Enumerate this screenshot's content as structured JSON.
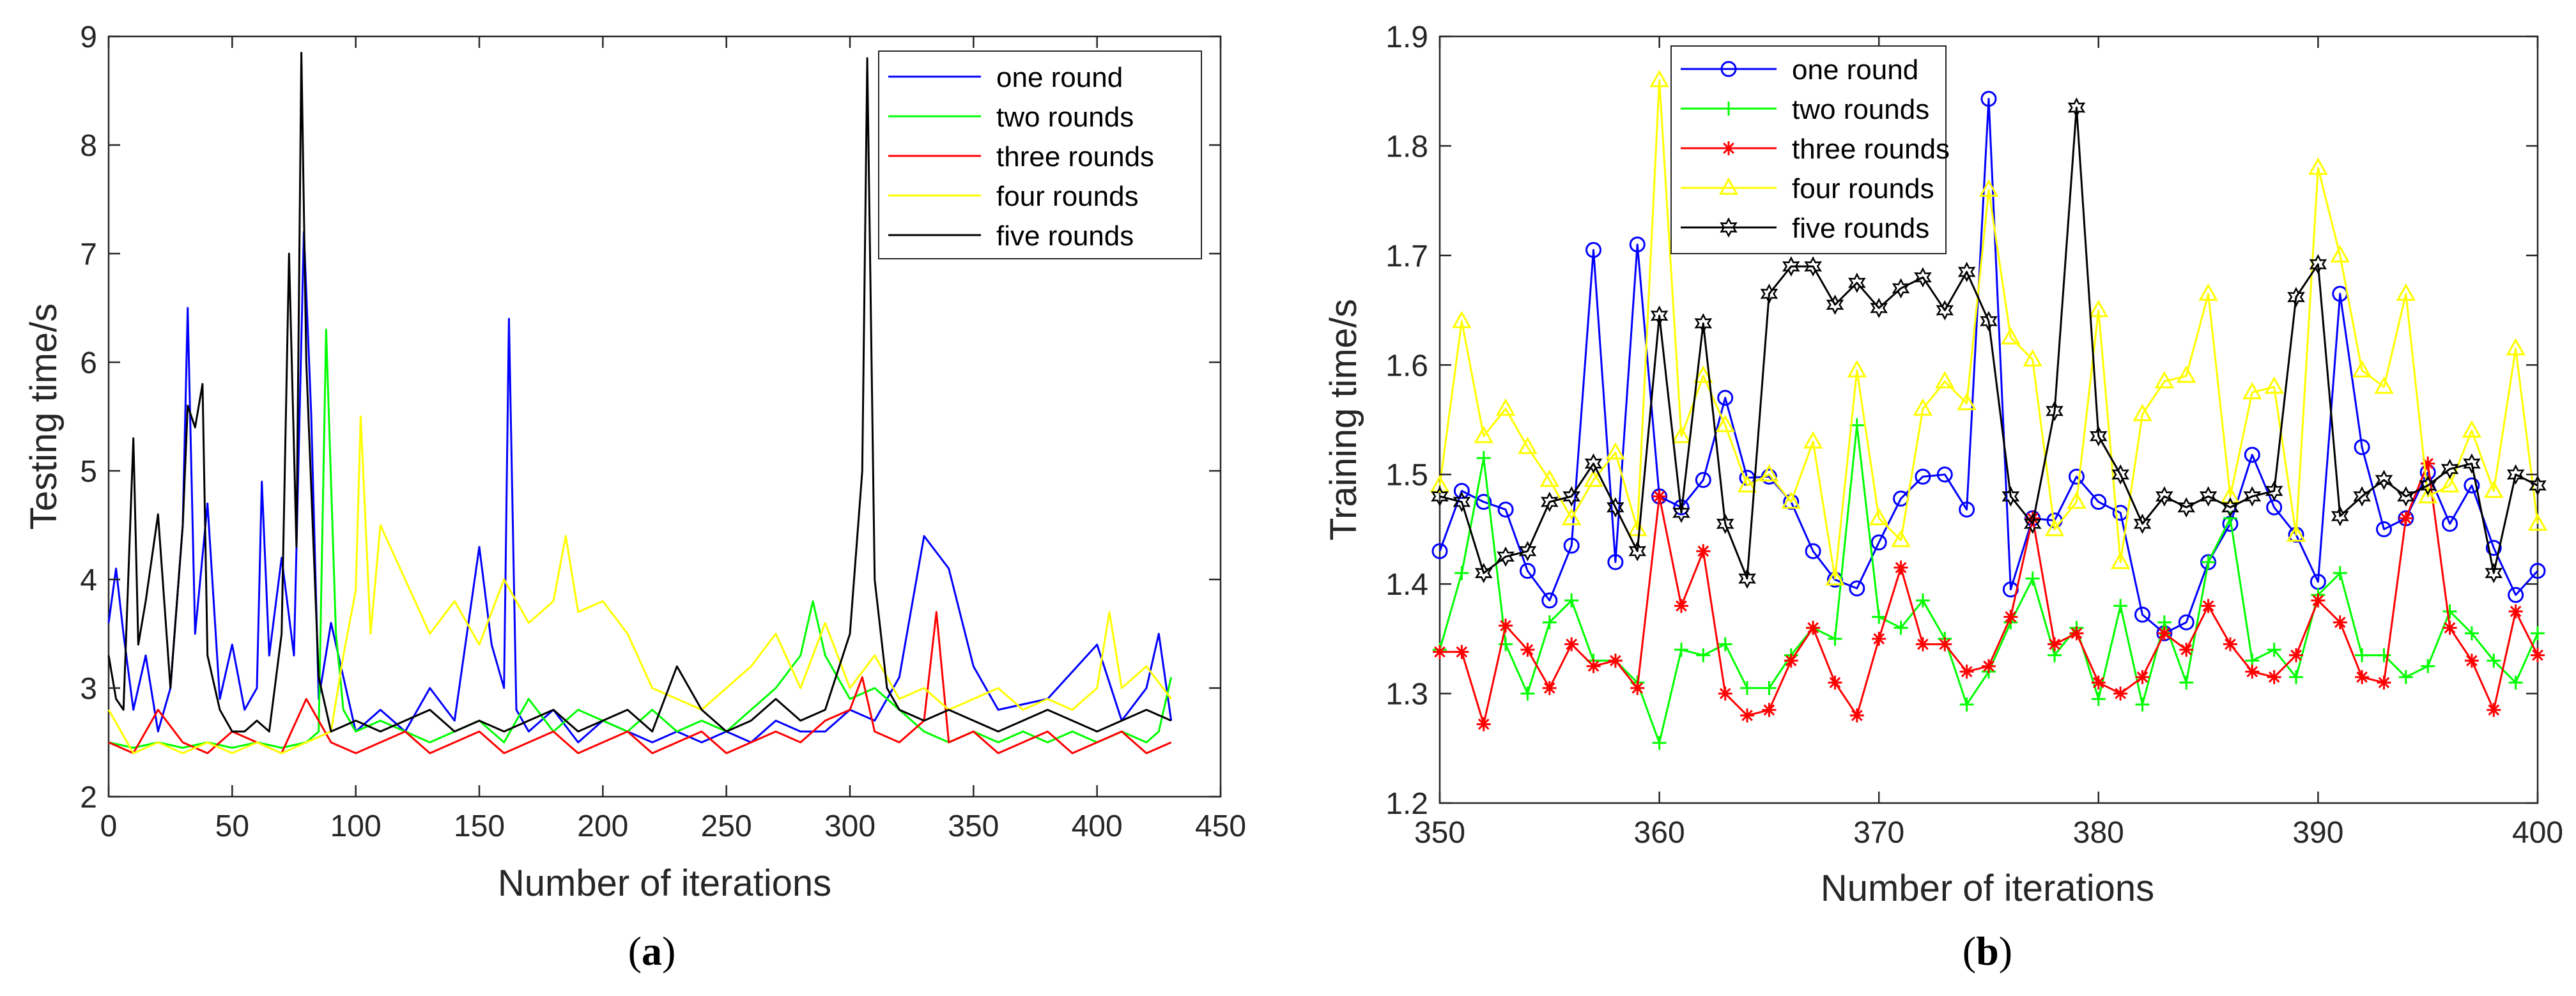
{
  "chart_data": [
    {
      "type": "line",
      "panel_label": "a",
      "title": "",
      "xlabel": "Number of iterations",
      "ylabel": "Testing time/s",
      "xlim": [
        0,
        450
      ],
      "ylim": [
        2,
        9
      ],
      "xticks": [
        0,
        50,
        100,
        150,
        200,
        250,
        300,
        350,
        400,
        450
      ],
      "yticks": [
        2,
        3,
        4,
        5,
        6,
        7,
        8,
        9
      ],
      "legend_position": "top-right",
      "colors": {
        "one round": "#0000ff",
        "two rounds": "#00ff00",
        "three rounds": "#ff0000",
        "four rounds": "#ffff00",
        "five rounds": "#000000"
      },
      "series": [
        {
          "name": "one round",
          "color": "#0000ff",
          "x": [
            0,
            3,
            6,
            10,
            15,
            20,
            25,
            30,
            32,
            35,
            40,
            45,
            50,
            55,
            60,
            62,
            65,
            70,
            75,
            79,
            82,
            85,
            90,
            100,
            110,
            120,
            130,
            140,
            150,
            155,
            160,
            162,
            165,
            170,
            180,
            190,
            200,
            210,
            220,
            230,
            240,
            250,
            260,
            270,
            280,
            290,
            300,
            310,
            320,
            330,
            340,
            350,
            360,
            380,
            400,
            410,
            420,
            425,
            430
          ],
          "y": [
            3.6,
            4.1,
            3.5,
            2.8,
            3.3,
            2.6,
            3.0,
            4.5,
            6.5,
            3.5,
            4.7,
            2.9,
            3.4,
            2.8,
            3.0,
            4.9,
            3.3,
            4.2,
            3.3,
            7.2,
            5.5,
            2.9,
            3.6,
            2.6,
            2.8,
            2.6,
            3.0,
            2.7,
            4.3,
            3.4,
            3.0,
            6.4,
            2.8,
            2.6,
            2.8,
            2.5,
            2.7,
            2.6,
            2.5,
            2.6,
            2.5,
            2.6,
            2.5,
            2.7,
            2.6,
            2.6,
            2.8,
            2.7,
            3.1,
            4.4,
            4.1,
            3.2,
            2.8,
            2.9,
            3.4,
            2.7,
            3.0,
            3.5,
            2.7
          ]
        },
        {
          "name": "two rounds",
          "color": "#00ff00",
          "x": [
            0,
            10,
            20,
            30,
            40,
            50,
            60,
            70,
            80,
            85,
            88,
            92,
            95,
            100,
            110,
            120,
            130,
            140,
            150,
            160,
            170,
            180,
            190,
            200,
            210,
            220,
            230,
            240,
            250,
            260,
            270,
            280,
            285,
            290,
            300,
            310,
            320,
            330,
            340,
            350,
            360,
            370,
            380,
            390,
            400,
            410,
            420,
            425,
            430
          ],
          "y": [
            2.5,
            2.45,
            2.5,
            2.45,
            2.5,
            2.45,
            2.5,
            2.45,
            2.5,
            2.6,
            6.3,
            3.5,
            2.8,
            2.6,
            2.7,
            2.6,
            2.5,
            2.6,
            2.7,
            2.5,
            2.9,
            2.6,
            2.8,
            2.7,
            2.6,
            2.8,
            2.6,
            2.7,
            2.6,
            2.8,
            3.0,
            3.3,
            3.8,
            3.3,
            2.9,
            3.0,
            2.8,
            2.6,
            2.5,
            2.6,
            2.5,
            2.6,
            2.5,
            2.6,
            2.5,
            2.6,
            2.5,
            2.6,
            3.1
          ]
        },
        {
          "name": "three rounds",
          "color": "#ff0000",
          "x": [
            0,
            10,
            20,
            30,
            40,
            50,
            60,
            70,
            80,
            90,
            100,
            110,
            120,
            130,
            140,
            150,
            160,
            170,
            180,
            190,
            200,
            210,
            220,
            230,
            240,
            250,
            260,
            270,
            280,
            290,
            300,
            305,
            310,
            320,
            330,
            335,
            340,
            350,
            360,
            370,
            380,
            390,
            400,
            410,
            420,
            430
          ],
          "y": [
            2.5,
            2.4,
            2.8,
            2.5,
            2.4,
            2.6,
            2.5,
            2.4,
            2.9,
            2.5,
            2.4,
            2.5,
            2.6,
            2.4,
            2.5,
            2.6,
            2.4,
            2.5,
            2.6,
            2.4,
            2.5,
            2.6,
            2.4,
            2.5,
            2.6,
            2.4,
            2.5,
            2.6,
            2.5,
            2.7,
            2.8,
            3.1,
            2.6,
            2.5,
            2.7,
            3.7,
            2.5,
            2.6,
            2.4,
            2.5,
            2.6,
            2.4,
            2.5,
            2.6,
            2.4,
            2.5
          ]
        },
        {
          "name": "four rounds",
          "color": "#ffff00",
          "x": [
            0,
            10,
            20,
            30,
            40,
            50,
            60,
            70,
            80,
            90,
            95,
            100,
            102,
            106,
            110,
            120,
            130,
            140,
            150,
            160,
            170,
            180,
            185,
            190,
            200,
            210,
            220,
            230,
            240,
            250,
            260,
            270,
            280,
            290,
            300,
            310,
            320,
            330,
            340,
            350,
            360,
            370,
            380,
            390,
            400,
            405,
            410,
            420,
            430
          ],
          "y": [
            2.8,
            2.4,
            2.5,
            2.4,
            2.5,
            2.4,
            2.5,
            2.4,
            2.5,
            2.6,
            3.3,
            3.9,
            5.5,
            3.5,
            4.5,
            4.0,
            3.5,
            3.8,
            3.4,
            4.0,
            3.6,
            3.8,
            4.4,
            3.7,
            3.8,
            3.5,
            3.0,
            2.9,
            2.8,
            3.0,
            3.2,
            3.5,
            3.0,
            3.6,
            3.0,
            3.3,
            2.9,
            3.0,
            2.8,
            2.9,
            3.0,
            2.8,
            2.9,
            2.8,
            3.0,
            3.7,
            3.0,
            3.2,
            2.9
          ]
        },
        {
          "name": "five rounds",
          "color": "#000000",
          "x": [
            0,
            3,
            6,
            10,
            12,
            15,
            20,
            25,
            30,
            32,
            35,
            38,
            40,
            45,
            50,
            55,
            60,
            65,
            70,
            73,
            76,
            78,
            80,
            85,
            90,
            100,
            110,
            120,
            130,
            140,
            150,
            160,
            170,
            180,
            190,
            200,
            210,
            220,
            230,
            240,
            250,
            260,
            270,
            280,
            290,
            300,
            305,
            307,
            310,
            315,
            320,
            330,
            340,
            350,
            360,
            370,
            380,
            390,
            400,
            410,
            420,
            430
          ],
          "y": [
            3.3,
            2.9,
            2.8,
            5.3,
            3.4,
            3.8,
            4.6,
            3.0,
            4.5,
            5.6,
            5.4,
            5.8,
            3.3,
            2.8,
            2.6,
            2.6,
            2.7,
            2.6,
            3.5,
            7.0,
            4.3,
            8.85,
            6.0,
            3.1,
            2.6,
            2.7,
            2.6,
            2.7,
            2.8,
            2.6,
            2.7,
            2.6,
            2.7,
            2.8,
            2.6,
            2.7,
            2.8,
            2.6,
            3.2,
            2.8,
            2.6,
            2.7,
            2.9,
            2.7,
            2.8,
            3.5,
            5.0,
            8.8,
            4.0,
            3.0,
            2.8,
            2.7,
            2.8,
            2.7,
            2.6,
            2.7,
            2.8,
            2.7,
            2.6,
            2.7,
            2.8,
            2.7
          ]
        }
      ]
    },
    {
      "type": "line",
      "panel_label": "b",
      "title": "",
      "xlabel": "Number of iterations",
      "ylabel": "Training time/s",
      "xlim": [
        350,
        400
      ],
      "ylim": [
        1.2,
        1.9
      ],
      "xticks": [
        350,
        360,
        370,
        380,
        390,
        400
      ],
      "yticks": [
        1.2,
        1.3,
        1.4,
        1.5,
        1.6,
        1.7,
        1.8,
        1.9
      ],
      "legend_position": "top-left",
      "colors": {
        "one round": "#0000ff",
        "two rounds": "#00ff00",
        "three rounds": "#ff0000",
        "four rounds": "#ffff00",
        "five rounds": "#000000"
      },
      "x": [
        350,
        351,
        352,
        353,
        354,
        355,
        356,
        357,
        358,
        359,
        360,
        361,
        362,
        363,
        364,
        365,
        366,
        367,
        368,
        369,
        370,
        371,
        372,
        373,
        374,
        375,
        376,
        377,
        378,
        379,
        380,
        381,
        382,
        383,
        384,
        385,
        386,
        387,
        388,
        389,
        390,
        391,
        392,
        393,
        394,
        395,
        396,
        397,
        398,
        399,
        400
      ],
      "series": [
        {
          "name": "one round",
          "color": "#0000ff",
          "marker": "circle",
          "values": [
            1.43,
            1.485,
            1.475,
            1.468,
            1.412,
            1.385,
            1.435,
            1.705,
            1.42,
            1.71,
            1.48,
            1.47,
            1.495,
            1.57,
            1.497,
            1.498,
            1.475,
            1.43,
            1.404,
            1.396,
            1.438,
            1.478,
            1.498,
            1.5,
            1.468,
            1.843,
            1.395,
            1.46,
            1.458,
            1.498,
            1.475,
            1.465,
            1.372,
            1.355,
            1.365,
            1.42,
            1.455,
            1.518,
            1.47,
            1.445,
            1.402,
            1.665,
            1.525,
            1.45,
            1.46,
            1.502,
            1.455,
            1.49,
            1.433,
            1.39,
            1.412
          ]
        },
        {
          "name": "two rounds",
          "color": "#00ff00",
          "marker": "plus",
          "values": [
            1.34,
            1.41,
            1.515,
            1.345,
            1.3,
            1.365,
            1.385,
            1.33,
            1.33,
            1.31,
            1.255,
            1.34,
            1.335,
            1.345,
            1.305,
            1.305,
            1.335,
            1.36,
            1.35,
            1.545,
            1.37,
            1.36,
            1.385,
            1.35,
            1.29,
            1.32,
            1.365,
            1.405,
            1.335,
            1.36,
            1.295,
            1.38,
            1.29,
            1.365,
            1.31,
            1.42,
            1.46,
            1.33,
            1.34,
            1.315,
            1.39,
            1.41,
            1.335,
            1.335,
            1.315,
            1.325,
            1.375,
            1.355,
            1.33,
            1.31,
            1.355
          ]
        },
        {
          "name": "three rounds",
          "color": "#ff0000",
          "marker": "asterisk",
          "values": [
            1.338,
            1.338,
            1.272,
            1.362,
            1.34,
            1.305,
            1.345,
            1.325,
            1.33,
            1.305,
            1.48,
            1.38,
            1.43,
            1.3,
            1.28,
            1.285,
            1.33,
            1.36,
            1.31,
            1.28,
            1.35,
            1.415,
            1.345,
            1.345,
            1.32,
            1.325,
            1.37,
            1.46,
            1.345,
            1.355,
            1.31,
            1.3,
            1.315,
            1.355,
            1.34,
            1.38,
            1.345,
            1.32,
            1.315,
            1.335,
            1.385,
            1.365,
            1.315,
            1.31,
            1.46,
            1.51,
            1.36,
            1.33,
            1.285,
            1.375,
            1.335
          ]
        },
        {
          "name": "four rounds",
          "color": "#ffff00",
          "marker": "triangle",
          "values": [
            1.49,
            1.64,
            1.535,
            1.56,
            1.525,
            1.495,
            1.46,
            1.495,
            1.52,
            1.45,
            1.86,
            1.535,
            1.59,
            1.545,
            1.49,
            1.5,
            1.475,
            1.53,
            1.405,
            1.595,
            1.46,
            1.44,
            1.56,
            1.585,
            1.565,
            1.76,
            1.625,
            1.605,
            1.45,
            1.475,
            1.65,
            1.42,
            1.555,
            1.585,
            1.59,
            1.665,
            1.48,
            1.575,
            1.58,
            1.445,
            1.78,
            1.7,
            1.595,
            1.58,
            1.665,
            1.48,
            1.49,
            1.54,
            1.485,
            1.615,
            1.455
          ]
        },
        {
          "name": "five rounds",
          "color": "#000000",
          "marker": "hexagram",
          "values": [
            1.48,
            1.475,
            1.41,
            1.425,
            1.43,
            1.475,
            1.48,
            1.51,
            1.47,
            1.43,
            1.645,
            1.465,
            1.638,
            1.455,
            1.405,
            1.665,
            1.69,
            1.69,
            1.655,
            1.675,
            1.652,
            1.67,
            1.68,
            1.65,
            1.685,
            1.64,
            1.48,
            1.455,
            1.558,
            1.835,
            1.535,
            1.5,
            1.455,
            1.48,
            1.47,
            1.48,
            1.47,
            1.48,
            1.485,
            1.662,
            1.692,
            1.462,
            1.48,
            1.495,
            1.48,
            1.49,
            1.505,
            1.51,
            1.41,
            1.5,
            1.49
          ]
        }
      ]
    }
  ]
}
